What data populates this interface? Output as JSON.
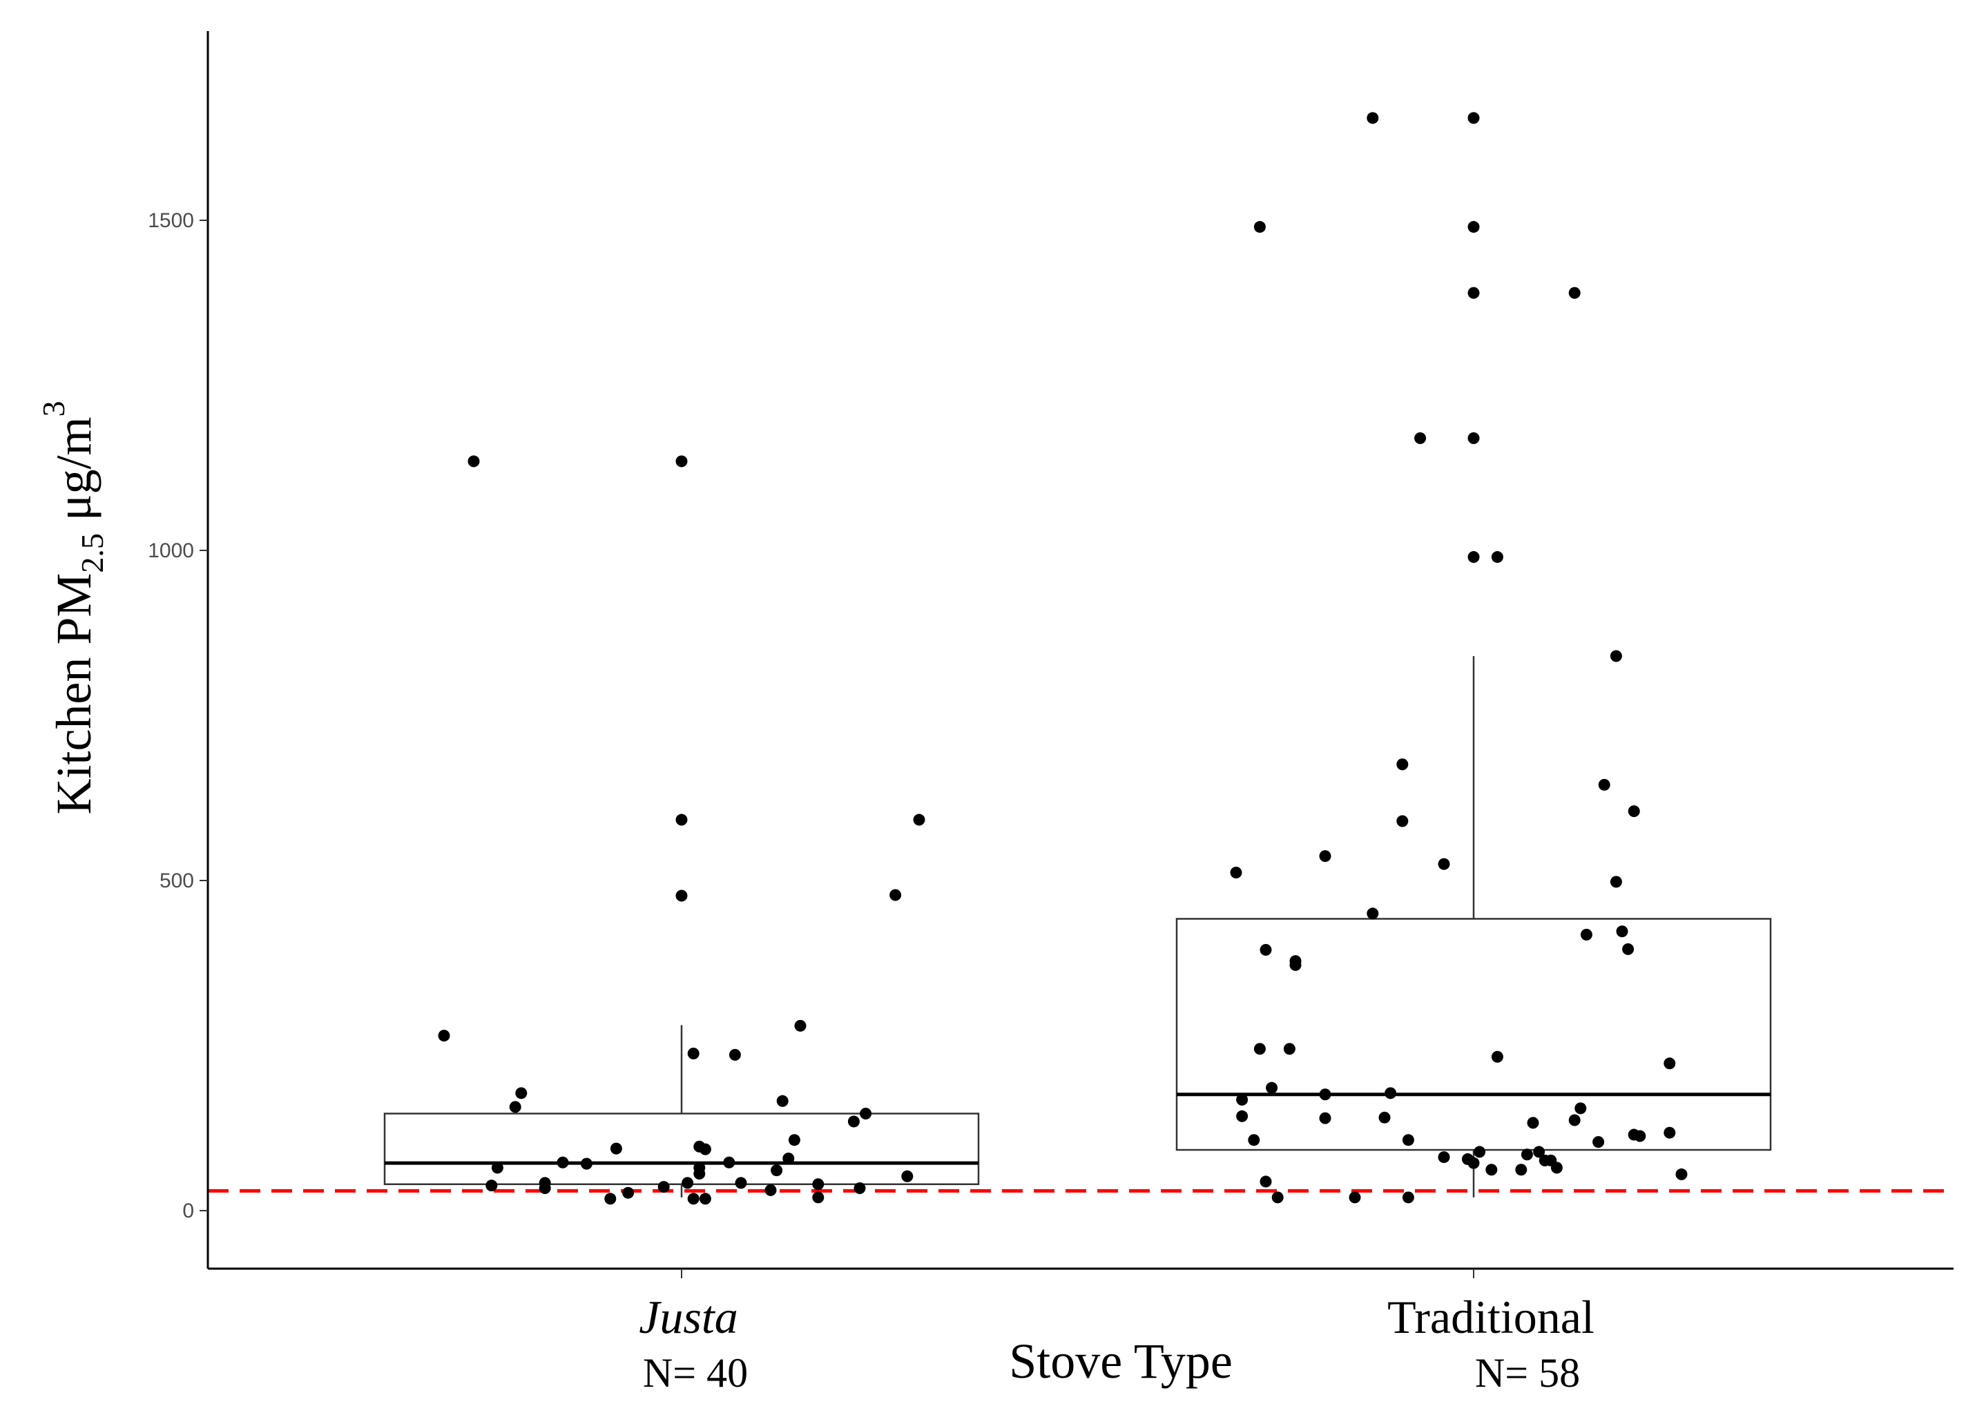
{
  "chart_data": {
    "type": "box",
    "ylabel": {
      "main": "Kitchen PM",
      "subscript": "2.5",
      "units": " μg/m",
      "superscript": "3"
    },
    "xlabel": "Stove Type",
    "ylim": [
      -160,
      1790
    ],
    "y_ticks": [
      0,
      500,
      1000,
      1500
    ],
    "reference_line": {
      "value": 30,
      "color": "#ff0000",
      "style": "dashed"
    },
    "groups": [
      {
        "name": "Justa",
        "italic": true,
        "n_label": "N= 40",
        "box": {
          "q1": 40,
          "median": 72,
          "q3": 147,
          "whisker_low": 20,
          "whisker_high": 281
        },
        "points": [
          {
            "dx": -0.4,
            "y": 265
          },
          {
            "dx": -0.35,
            "y": 1135
          },
          {
            "dx": -0.32,
            "y": 38
          },
          {
            "dx": -0.31,
            "y": 65
          },
          {
            "dx": -0.28,
            "y": 157
          },
          {
            "dx": -0.27,
            "y": 178
          },
          {
            "dx": -0.23,
            "y": 42
          },
          {
            "dx": -0.23,
            "y": 34
          },
          {
            "dx": -0.2,
            "y": 73
          },
          {
            "dx": -0.16,
            "y": 71
          },
          {
            "dx": -0.12,
            "y": 18
          },
          {
            "dx": -0.11,
            "y": 94
          },
          {
            "dx": -0.09,
            "y": 27
          },
          {
            "dx": -0.03,
            "y": 36
          },
          {
            "dx": 0.0,
            "y": 1135
          },
          {
            "dx": 0.0,
            "y": 592
          },
          {
            "dx": 0.0,
            "y": 477
          },
          {
            "dx": 0.01,
            "y": 42
          },
          {
            "dx": 0.02,
            "y": 238
          },
          {
            "dx": 0.02,
            "y": 18
          },
          {
            "dx": 0.03,
            "y": 97
          },
          {
            "dx": 0.03,
            "y": 56
          },
          {
            "dx": 0.03,
            "y": 65
          },
          {
            "dx": 0.04,
            "y": 93
          },
          {
            "dx": 0.04,
            "y": 18
          },
          {
            "dx": 0.08,
            "y": 73
          },
          {
            "dx": 0.09,
            "y": 236
          },
          {
            "dx": 0.1,
            "y": 42
          },
          {
            "dx": 0.15,
            "y": 31
          },
          {
            "dx": 0.16,
            "y": 61
          },
          {
            "dx": 0.17,
            "y": 166
          },
          {
            "dx": 0.18,
            "y": 79
          },
          {
            "dx": 0.19,
            "y": 107
          },
          {
            "dx": 0.2,
            "y": 280
          },
          {
            "dx": 0.23,
            "y": 40
          },
          {
            "dx": 0.23,
            "y": 20
          },
          {
            "dx": 0.29,
            "y": 135
          },
          {
            "dx": 0.3,
            "y": 34
          },
          {
            "dx": 0.31,
            "y": 147
          },
          {
            "dx": 0.36,
            "y": 478
          },
          {
            "dx": 0.38,
            "y": 52
          },
          {
            "dx": 0.4,
            "y": 592
          }
        ]
      },
      {
        "name": "Traditional",
        "italic": false,
        "n_label": "N= 58",
        "box": {
          "q1": 92,
          "median": 176,
          "q3": 442,
          "whisker_low": 20,
          "whisker_high": 840
        },
        "points": [
          {
            "dx": -0.4,
            "y": 512
          },
          {
            "dx": -0.39,
            "y": 143
          },
          {
            "dx": -0.39,
            "y": 168
          },
          {
            "dx": -0.37,
            "y": 107
          },
          {
            "dx": -0.36,
            "y": 245
          },
          {
            "dx": -0.35,
            "y": 395
          },
          {
            "dx": -0.35,
            "y": 44
          },
          {
            "dx": -0.36,
            "y": 1490
          },
          {
            "dx": -0.34,
            "y": 186
          },
          {
            "dx": -0.33,
            "y": 20
          },
          {
            "dx": -0.31,
            "y": 245
          },
          {
            "dx": -0.3,
            "y": 372
          },
          {
            "dx": -0.3,
            "y": 378
          },
          {
            "dx": -0.25,
            "y": 537
          },
          {
            "dx": -0.25,
            "y": 176
          },
          {
            "dx": -0.25,
            "y": 140
          },
          {
            "dx": -0.2,
            "y": 20
          },
          {
            "dx": -0.17,
            "y": 450
          },
          {
            "dx": -0.17,
            "y": 1655
          },
          {
            "dx": -0.15,
            "y": 141
          },
          {
            "dx": -0.14,
            "y": 178
          },
          {
            "dx": -0.12,
            "y": 676
          },
          {
            "dx": -0.12,
            "y": 590
          },
          {
            "dx": -0.11,
            "y": 107
          },
          {
            "dx": -0.11,
            "y": 20
          },
          {
            "dx": -0.09,
            "y": 1170
          },
          {
            "dx": -0.05,
            "y": 525
          },
          {
            "dx": -0.05,
            "y": 81
          },
          {
            "dx": -0.01,
            "y": 78
          },
          {
            "dx": 0.0,
            "y": 1655
          },
          {
            "dx": 0.0,
            "y": 1490
          },
          {
            "dx": 0.0,
            "y": 1390
          },
          {
            "dx": 0.0,
            "y": 1170
          },
          {
            "dx": 0.0,
            "y": 990
          },
          {
            "dx": 0.0,
            "y": 72
          },
          {
            "dx": 0.01,
            "y": 89
          },
          {
            "dx": 0.03,
            "y": 62
          },
          {
            "dx": 0.04,
            "y": 233
          },
          {
            "dx": 0.04,
            "y": 990
          },
          {
            "dx": 0.08,
            "y": 62
          },
          {
            "dx": 0.09,
            "y": 85
          },
          {
            "dx": 0.1,
            "y": 133
          },
          {
            "dx": 0.11,
            "y": 89
          },
          {
            "dx": 0.12,
            "y": 76
          },
          {
            "dx": 0.13,
            "y": 76
          },
          {
            "dx": 0.14,
            "y": 65
          },
          {
            "dx": 0.17,
            "y": 137
          },
          {
            "dx": 0.17,
            "y": 1390
          },
          {
            "dx": 0.18,
            "y": 155
          },
          {
            "dx": 0.19,
            "y": 418
          },
          {
            "dx": 0.21,
            "y": 104
          },
          {
            "dx": 0.22,
            "y": 645
          },
          {
            "dx": 0.24,
            "y": 498
          },
          {
            "dx": 0.24,
            "y": 840
          },
          {
            "dx": 0.25,
            "y": 423
          },
          {
            "dx": 0.26,
            "y": 396
          },
          {
            "dx": 0.27,
            "y": 605
          },
          {
            "dx": 0.27,
            "y": 115
          },
          {
            "dx": 0.28,
            "y": 113
          },
          {
            "dx": 0.33,
            "y": 223
          },
          {
            "dx": 0.33,
            "y": 118
          },
          {
            "dx": 0.35,
            "y": 55
          }
        ]
      }
    ]
  }
}
